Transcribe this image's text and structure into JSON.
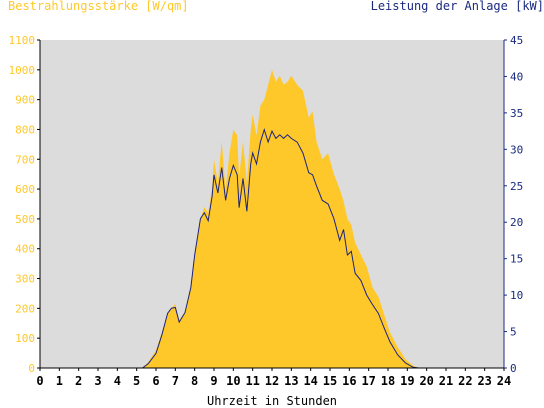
{
  "chart_data": {
    "type": "area",
    "xlabel": "Uhrzeit in Stunden",
    "ylabel_left": "Bestrahlungsstärke [W/qm]",
    "ylabel_right": "Leistung der Anlage [kW]",
    "xlim": [
      0,
      24
    ],
    "ylim_left": [
      0,
      1100
    ],
    "ylim_right": [
      0,
      45
    ],
    "x_ticks": [
      "0",
      "1",
      "2",
      "3",
      "4",
      "5",
      "6",
      "7",
      "8",
      "9",
      "10",
      "11",
      "12",
      "13",
      "14",
      "15",
      "16",
      "17",
      "18",
      "19",
      "20",
      "21",
      "22",
      "23",
      "24"
    ],
    "y_left_ticks": [
      "0",
      "100",
      "200",
      "300",
      "400",
      "500",
      "600",
      "700",
      "800",
      "900",
      "1000",
      "1100"
    ],
    "y_right_ticks": [
      "0",
      "5",
      "10",
      "15",
      "20",
      "25",
      "30",
      "35",
      "40",
      "45"
    ],
    "grid": false,
    "colors": {
      "plot_background": "#dcdcdc",
      "irradiance_fill": "#ffc82a",
      "power_line": "#1a237e",
      "left_axis_text": "#ffc82a",
      "right_axis_text": "#1a2a80",
      "x_axis_text": "#000000"
    },
    "series": [
      {
        "name": "Bestrahlungsstärke [W/qm]",
        "axis": "left",
        "x": [
          0,
          5.3,
          5.6,
          6.0,
          6.3,
          6.6,
          6.8,
          7.0,
          7.2,
          7.5,
          7.8,
          8.0,
          8.3,
          8.5,
          8.7,
          8.9,
          9.0,
          9.2,
          9.4,
          9.6,
          9.8,
          10.0,
          10.2,
          10.3,
          10.5,
          10.7,
          10.9,
          11.0,
          11.2,
          11.4,
          11.6,
          11.8,
          12.0,
          12.2,
          12.4,
          12.6,
          12.8,
          13.0,
          13.3,
          13.6,
          13.9,
          14.1,
          14.3,
          14.6,
          14.9,
          15.2,
          15.5,
          15.7,
          15.9,
          16.1,
          16.3,
          16.6,
          16.9,
          17.2,
          17.5,
          17.8,
          18.1,
          18.5,
          18.9,
          19.3,
          19.6,
          24
        ],
        "y": [
          0,
          0,
          20,
          60,
          120,
          180,
          200,
          215,
          160,
          190,
          280,
          380,
          500,
          540,
          520,
          600,
          700,
          620,
          760,
          600,
          720,
          800,
          780,
          640,
          760,
          620,
          800,
          850,
          780,
          880,
          900,
          950,
          1000,
          960,
          980,
          950,
          960,
          980,
          950,
          930,
          840,
          860,
          760,
          700,
          720,
          650,
          600,
          560,
          500,
          480,
          420,
          380,
          340,
          270,
          240,
          180,
          120,
          70,
          30,
          8,
          0,
          0
        ]
      },
      {
        "name": "Leistung der Anlage [kW]",
        "axis": "right",
        "x": [
          0,
          5.3,
          5.6,
          6.0,
          6.3,
          6.6,
          6.8,
          7.0,
          7.2,
          7.5,
          7.8,
          8.0,
          8.3,
          8.5,
          8.7,
          8.9,
          9.0,
          9.2,
          9.4,
          9.6,
          9.8,
          10.0,
          10.2,
          10.3,
          10.5,
          10.7,
          10.9,
          11.0,
          11.2,
          11.4,
          11.6,
          11.8,
          12.0,
          12.2,
          12.4,
          12.6,
          12.8,
          13.0,
          13.3,
          13.6,
          13.9,
          14.1,
          14.3,
          14.6,
          14.9,
          15.2,
          15.5,
          15.7,
          15.9,
          16.1,
          16.3,
          16.6,
          16.9,
          17.2,
          17.5,
          17.8,
          18.1,
          18.5,
          18.9,
          19.3,
          19.6,
          24
        ],
        "y": [
          0,
          0,
          0.6,
          2.0,
          4.5,
          7.5,
          8.2,
          8.3,
          6.3,
          7.6,
          11.0,
          15.5,
          20.5,
          21.3,
          20.2,
          23.5,
          26.5,
          24.0,
          27.5,
          23.0,
          26.0,
          27.8,
          26.5,
          22.0,
          26.0,
          21.5,
          28.0,
          29.5,
          28.0,
          31.0,
          32.7,
          31.0,
          32.5,
          31.5,
          32.0,
          31.5,
          32.0,
          31.5,
          31.0,
          29.5,
          26.8,
          26.5,
          25.0,
          23.0,
          22.5,
          20.5,
          17.5,
          19.0,
          15.5,
          16.0,
          13.0,
          12.0,
          10.0,
          8.7,
          7.5,
          5.5,
          3.6,
          1.8,
          0.7,
          0.1,
          0,
          0
        ]
      }
    ]
  }
}
